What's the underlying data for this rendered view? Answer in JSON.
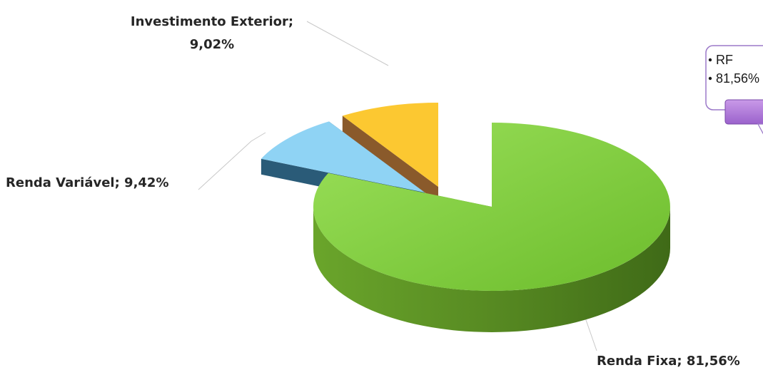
{
  "chart_data": {
    "type": "pie",
    "style": "3d-exploded",
    "title": "",
    "slices": [
      {
        "label": "Renda Fixa",
        "value": 81.56,
        "display": "Renda Fixa; 81,56%",
        "color": "#7ecb3a"
      },
      {
        "label": "Renda Variável",
        "value": 9.42,
        "display": "Renda Variável; 9,42%",
        "color": "#8fd3f4"
      },
      {
        "label": "Investimento Exterior",
        "value": 9.02,
        "display_line1": "Investimento Exterior;",
        "display_line2": "9,02%",
        "color": "#fcc831"
      }
    ],
    "callout": {
      "line1": "RF",
      "line2": "81,56%"
    }
  }
}
